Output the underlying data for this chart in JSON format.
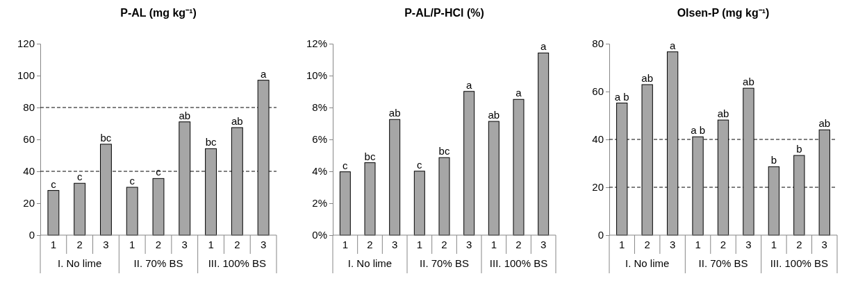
{
  "chart_data": [
    {
      "type": "bar",
      "title": "P-AL (mg kg⁻¹)",
      "categories": [
        "1",
        "2",
        "3",
        "1",
        "2",
        "3",
        "1",
        "2",
        "3"
      ],
      "values": [
        28.0,
        32.5,
        57.0,
        30.0,
        35.5,
        71.0,
        54.2,
        67.4,
        97.1
      ],
      "color": "#a6a6a6",
      "value_labels": [
        "c",
        "c",
        "bc",
        "c",
        "c",
        "ab",
        "bc",
        "ab",
        "a"
      ],
      "ylim": [
        0,
        120
      ],
      "yticks": [
        0,
        20,
        40,
        60,
        80,
        100,
        120
      ],
      "ref_lines": [
        {
          "axis": "y",
          "value": 40,
          "color": "#000000",
          "line_style": "dashed"
        },
        {
          "axis": "y",
          "value": 80,
          "color": "#000000",
          "line_style": "dashed"
        }
      ],
      "annotations": [
        "I. No lime",
        "II. 70% BS",
        "III. 100% BS"
      ]
    },
    {
      "type": "bar",
      "title": "P-AL/P-HCl (%)",
      "categories": [
        "1",
        "2",
        "3",
        "1",
        "2",
        "3",
        "1",
        "2",
        "3"
      ],
      "values": [
        3.97,
        4.54,
        7.25,
        4.01,
        4.86,
        9.01,
        7.13,
        8.51,
        11.42
      ],
      "color": "#a6a6a6",
      "value_labels": [
        "c",
        "bc",
        "ab",
        "c",
        "bc",
        "a",
        "ab",
        "a",
        "a"
      ],
      "ylim": [
        0,
        12
      ],
      "yticks": [
        {
          "value": 0,
          "label": "0%"
        },
        {
          "value": 2,
          "label": "2%"
        },
        {
          "value": 4,
          "label": "4%"
        },
        {
          "value": 6,
          "label": "6%"
        },
        {
          "value": 8,
          "label": "8%"
        },
        {
          "value": 10,
          "label": "10%"
        },
        {
          "value": 12,
          "label": "12%"
        }
      ],
      "annotations": [
        "I. No lime",
        "II. 70% BS",
        "III. 100% BS"
      ]
    },
    {
      "type": "bar",
      "title": "Olsen-P (mg kg⁻¹)",
      "categories": [
        "1",
        "2",
        "3",
        "1",
        "2",
        "3",
        "1",
        "2",
        "3"
      ],
      "values": [
        55.2,
        62.9,
        76.6,
        41.1,
        48.1,
        61.4,
        28.6,
        33.3,
        44.0
      ],
      "color": "#a6a6a6",
      "value_labels": [
        "a b",
        "ab",
        "a",
        "a b",
        "ab",
        "ab",
        "b",
        "b",
        "ab"
      ],
      "ylim": [
        0,
        80
      ],
      "yticks": [
        0,
        20,
        40,
        60,
        80
      ],
      "ref_lines": [
        {
          "axis": "y",
          "value": 20,
          "color": "#000000",
          "line_style": "dashed"
        },
        {
          "axis": "y",
          "value": 40,
          "color": "#000000",
          "line_style": "dashed"
        }
      ],
      "annotations": [
        "I. No lime",
        "II. 70% BS",
        "III. 100% BS"
      ]
    }
  ]
}
